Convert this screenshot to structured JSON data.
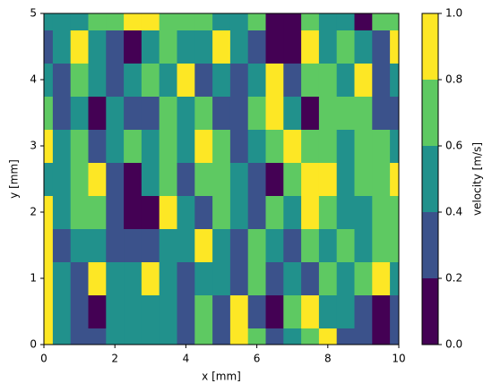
{
  "chart_data": {
    "type": "contourf",
    "xlabel": "x [mm]",
    "ylabel": "y [mm]",
    "x": [
      0,
      0.5,
      1,
      1.5,
      2,
      2.5,
      3,
      3.5,
      4,
      4.5,
      5,
      5.5,
      6,
      6.5,
      7,
      7.5,
      8,
      8.5,
      9,
      9.5,
      10
    ],
    "y": [
      0,
      0.5,
      1,
      1.5,
      2,
      2.5,
      3,
      3.5,
      4,
      4.5,
      5
    ],
    "z": [
      [
        0.85,
        0.5,
        0.3,
        0.3,
        0.5,
        0.5,
        0.5,
        0.5,
        0.3,
        0.65,
        0.3,
        0.85,
        0.65,
        0.3,
        0.5,
        0.65,
        0.85,
        0.3,
        0.3,
        0.1,
        0.3
      ],
      [
        0.85,
        0.5,
        0.3,
        0.1,
        0.5,
        0.5,
        0.5,
        0.5,
        0.3,
        0.65,
        0.3,
        0.85,
        0.3,
        0.1,
        0.65,
        0.85,
        0.5,
        0.5,
        0.3,
        0.1,
        0.3
      ],
      [
        0.85,
        0.5,
        0.3,
        0.85,
        0.5,
        0.5,
        0.85,
        0.5,
        0.3,
        0.5,
        0.5,
        0.3,
        0.65,
        0.3,
        0.5,
        0.3,
        0.65,
        0.5,
        0.65,
        0.85,
        0.5
      ],
      [
        0.85,
        0.35,
        0.5,
        0.5,
        0.3,
        0.3,
        0.3,
        0.5,
        0.5,
        0.85,
        0.5,
        0.3,
        0.65,
        0.5,
        0.3,
        0.65,
        0.5,
        0.7,
        0.5,
        0.65,
        0.65
      ],
      [
        0.85,
        0.45,
        0.65,
        0.65,
        0.3,
        0.05,
        0.1,
        0.85,
        0.5,
        0.3,
        0.65,
        0.5,
        0.3,
        0.65,
        0.5,
        0.85,
        0.65,
        0.5,
        0.55,
        0.65,
        0.65
      ],
      [
        0.55,
        0.5,
        0.65,
        0.85,
        0.3,
        0.1,
        0.5,
        0.65,
        0.3,
        0.65,
        0.65,
        0.5,
        0.35,
        0.1,
        0.65,
        0.85,
        0.85,
        0.55,
        0.65,
        0.65,
        0.85
      ],
      [
        0.85,
        0.5,
        0.65,
        0.3,
        0.5,
        0.65,
        0.5,
        0.65,
        0.5,
        0.85,
        0.65,
        0.3,
        0.5,
        0.65,
        0.85,
        0.65,
        0.65,
        0.5,
        0.6,
        0.65,
        0.45
      ],
      [
        0.75,
        0.3,
        0.5,
        0.1,
        0.5,
        0.3,
        0.3,
        0.65,
        0.5,
        0.65,
        0.3,
        0.3,
        0.65,
        0.85,
        0.5,
        0.1,
        0.7,
        0.65,
        0.65,
        0.3,
        0.3
      ],
      [
        0.5,
        0.3,
        0.65,
        0.5,
        0.3,
        0.5,
        0.65,
        0.5,
        0.85,
        0.3,
        0.5,
        0.3,
        0.5,
        0.85,
        0.3,
        0.7,
        0.65,
        0.5,
        0.85,
        0.3,
        0.5
      ],
      [
        0.3,
        0.5,
        0.85,
        0.5,
        0.3,
        0.1,
        0.5,
        0.65,
        0.5,
        0.45,
        0.85,
        0.5,
        0.3,
        0.1,
        0.1,
        0.85,
        0.55,
        0.65,
        0.5,
        0.3,
        0.85
      ],
      [
        0.5,
        0.5,
        0.55,
        0.65,
        0.7,
        0.85,
        0.85,
        0.65,
        0.7,
        0.65,
        0.5,
        0.5,
        0.7,
        0.1,
        0.1,
        0.7,
        0.5,
        0.5,
        0.1,
        0.7,
        0.65
      ]
    ],
    "colors": [
      "#440154",
      "#3b528b",
      "#21918c",
      "#5ec962",
      "#fde725"
    ],
    "xlim": [
      0,
      10
    ],
    "ylim": [
      0,
      5
    ],
    "xticks": [
      0,
      2,
      4,
      6,
      8,
      10
    ],
    "yticks": [
      0,
      1,
      2,
      3,
      4,
      5
    ],
    "colorbar_label": "velocity [m/s]",
    "colorbar_ticks": [
      {
        "value": 0,
        "label": "0.0"
      },
      {
        "value": 0.2,
        "label": "0.2"
      },
      {
        "value": 0.4,
        "label": "0.4"
      },
      {
        "value": 0.6,
        "label": "0.6"
      },
      {
        "value": 0.8,
        "label": "0.8"
      },
      {
        "value": 1,
        "label": "1.0"
      }
    ]
  }
}
